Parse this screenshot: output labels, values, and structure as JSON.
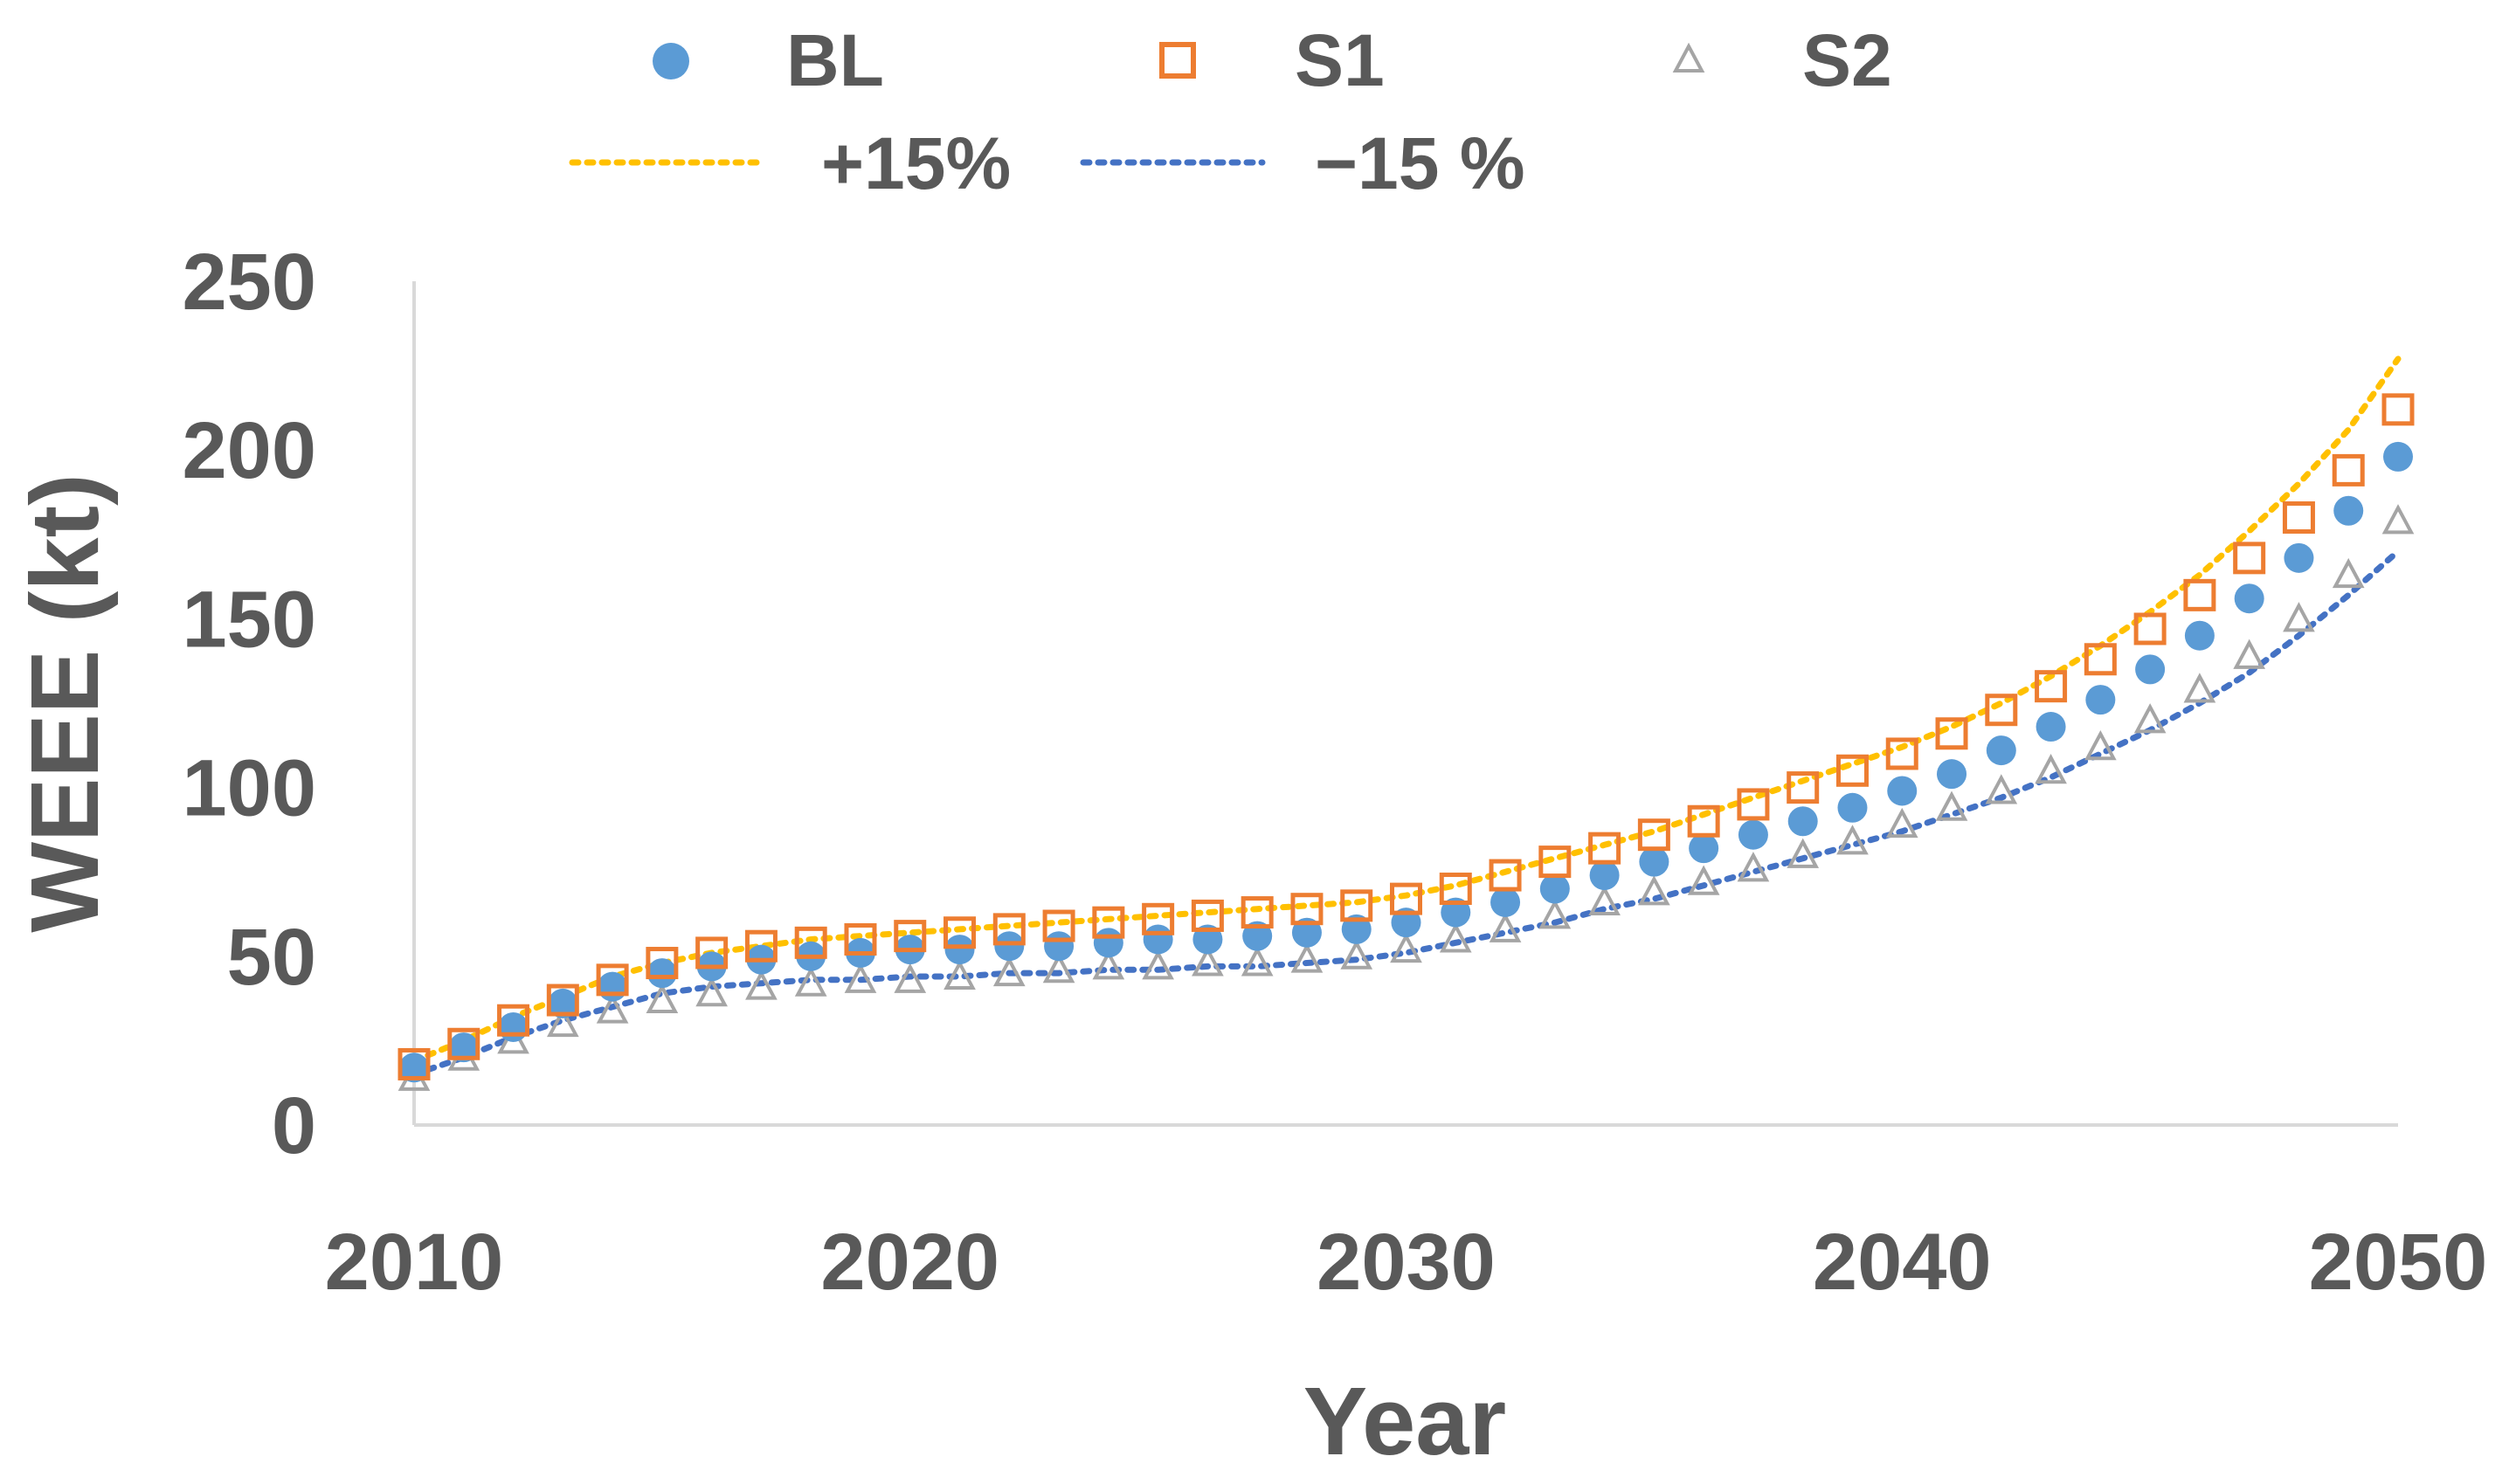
{
  "chart_data": {
    "type": "scatter",
    "xlabel": "Year",
    "ylabel": "WEEE (kt)",
    "xlim": [
      2010,
      2050
    ],
    "ylim": [
      0,
      250
    ],
    "x_ticks": [
      "2010",
      "2020",
      "2030",
      "2040",
      "2050"
    ],
    "y_ticks": [
      "0",
      "50",
      "100",
      "150",
      "200",
      "250"
    ],
    "grid": false,
    "legend_position": "top",
    "x": [
      2010,
      2011,
      2012,
      2013,
      2014,
      2015,
      2016,
      2017,
      2018,
      2019,
      2020,
      2021,
      2022,
      2023,
      2024,
      2025,
      2026,
      2027,
      2028,
      2029,
      2030,
      2031,
      2032,
      2033,
      2034,
      2035,
      2036,
      2037,
      2038,
      2039,
      2040,
      2041,
      2042,
      2043,
      2044,
      2045,
      2046,
      2047,
      2048,
      2049,
      2050
    ],
    "series": [
      {
        "name": "BL",
        "kind": "marker",
        "marker": "circle",
        "color": "#5B9BD5",
        "values": [
          17,
          23,
          29,
          36,
          41,
          45,
          47,
          49,
          50,
          51,
          52,
          52,
          53,
          53,
          54,
          55,
          55,
          56,
          57,
          58,
          60,
          63,
          66,
          70,
          74,
          78,
          82,
          86,
          90,
          94,
          99,
          104,
          111,
          118,
          126,
          135,
          145,
          156,
          168,
          182,
          198
        ]
      },
      {
        "name": "S1",
        "kind": "marker",
        "marker": "square",
        "color": "#ED7D31",
        "values": [
          18,
          24,
          31,
          37,
          43,
          48,
          51,
          53,
          54,
          55,
          56,
          57,
          58,
          59,
          60,
          61,
          62,
          63,
          64,
          65,
          67,
          70,
          74,
          78,
          82,
          86,
          90,
          95,
          100,
          105,
          110,
          116,
          123,
          130,
          138,
          147,
          157,
          168,
          180,
          194,
          212
        ]
      },
      {
        "name": "S2",
        "kind": "marker",
        "marker": "triangle",
        "color": "#A5A5A5",
        "values": [
          14,
          20,
          25,
          30,
          34,
          37,
          39,
          41,
          42,
          43,
          43,
          44,
          45,
          46,
          47,
          47,
          48,
          48,
          49,
          50,
          52,
          55,
          58,
          62,
          66,
          69,
          72,
          76,
          80,
          84,
          89,
          94,
          99,
          105,
          112,
          120,
          129,
          139,
          150,
          163,
          179
        ]
      },
      {
        "name": "+15%",
        "kind": "dotted-line",
        "color": "#FFC000",
        "values": [
          19,
          25,
          32,
          38,
          44,
          48,
          51,
          53,
          55,
          56,
          57,
          58,
          59,
          60,
          61,
          62,
          63,
          64,
          65,
          66,
          68,
          71,
          75,
          79,
          83,
          87,
          92,
          97,
          102,
          107,
          112,
          118,
          125,
          133,
          142,
          152,
          163,
          176,
          190,
          206,
          227
        ]
      },
      {
        "name": "−15 %",
        "kind": "dotted-line",
        "color": "#4472C4",
        "values": [
          15,
          20,
          26,
          31,
          35,
          39,
          41,
          42,
          43,
          43,
          44,
          44,
          45,
          45,
          46,
          46,
          47,
          47,
          48,
          49,
          51,
          54,
          57,
          60,
          64,
          67,
          71,
          75,
          79,
          83,
          87,
          92,
          97,
          103,
          110,
          117,
          125,
          134,
          145,
          157,
          170
        ]
      }
    ]
  }
}
